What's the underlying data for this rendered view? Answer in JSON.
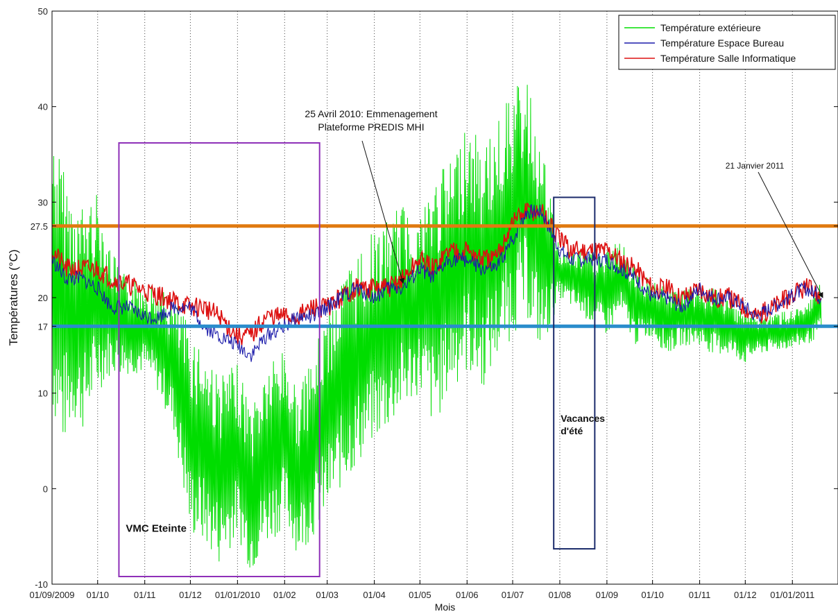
{
  "chart_data": {
    "type": "line",
    "title": "",
    "xlabel": "Mois",
    "ylabel": "Températures (°C)",
    "ylim": [
      -10,
      50
    ],
    "xlim": [
      "2009-09-01",
      "2011-01-31"
    ],
    "y_ticks": [
      -10,
      0,
      10,
      20,
      30,
      40,
      50
    ],
    "y_extra_ticks": [
      17,
      27.5
    ],
    "x_ticks": [
      {
        "date": "2009-09-01",
        "label": "01/09/2009"
      },
      {
        "date": "2009-10-01",
        "label": "01/10"
      },
      {
        "date": "2009-11-01",
        "label": "01/11"
      },
      {
        "date": "2009-12-01",
        "label": "01/12"
      },
      {
        "date": "2010-01-01",
        "label": "01/01/2010"
      },
      {
        "date": "2010-02-01",
        "label": "01/02"
      },
      {
        "date": "2010-03-01",
        "label": "01/03"
      },
      {
        "date": "2010-04-01",
        "label": "01/04"
      },
      {
        "date": "2010-05-01",
        "label": "01/05"
      },
      {
        "date": "2010-06-01",
        "label": "01/06"
      },
      {
        "date": "2010-07-01",
        "label": "01/07"
      },
      {
        "date": "2010-08-01",
        "label": "01/08"
      },
      {
        "date": "2010-09-01",
        "label": "01/09"
      },
      {
        "date": "2010-10-01",
        "label": "01/10"
      },
      {
        "date": "2010-11-01",
        "label": "01/11"
      },
      {
        "date": "2010-12-01",
        "label": "01/12"
      },
      {
        "date": "2011-01-01",
        "label": "01/01/2011"
      }
    ],
    "grid": "x-dotted",
    "legend_position": "top-right",
    "series": [
      {
        "name": "Température extérieure",
        "color": "#00dd00",
        "x": [
          "2009-09-01",
          "2009-09-08",
          "2009-09-15",
          "2009-09-22",
          "2009-10-01",
          "2009-10-10",
          "2009-10-20",
          "2009-11-01",
          "2009-11-10",
          "2009-11-20",
          "2009-12-01",
          "2009-12-10",
          "2009-12-20",
          "2010-01-01",
          "2010-01-10",
          "2010-01-20",
          "2010-02-01",
          "2010-02-10",
          "2010-02-20",
          "2010-03-01",
          "2010-03-10",
          "2010-03-20",
          "2010-04-01",
          "2010-04-10",
          "2010-04-20",
          "2010-05-01",
          "2010-05-10",
          "2010-05-20",
          "2010-06-01",
          "2010-06-10",
          "2010-06-20",
          "2010-07-01",
          "2010-07-10",
          "2010-07-20",
          "2010-08-01",
          "2010-09-01",
          "2010-09-10",
          "2010-09-20",
          "2010-10-01",
          "2010-10-10",
          "2010-10-20",
          "2010-11-01",
          "2010-11-10",
          "2010-11-20",
          "2010-12-01",
          "2010-12-08",
          "2011-01-10",
          "2011-01-20"
        ],
        "y": [
          27,
          18,
          22,
          16,
          19,
          20,
          17,
          18,
          16,
          14,
          6,
          3,
          -1,
          2,
          -4,
          1,
          3,
          -2,
          2,
          6,
          8,
          12,
          15,
          17,
          18,
          19,
          14,
          18,
          20,
          17,
          21,
          24,
          27,
          22,
          23,
          20,
          22,
          18,
          19,
          17,
          18,
          18,
          17,
          17,
          17,
          16,
          17,
          18
        ],
        "low": [
          8,
          4,
          7,
          6,
          10,
          12,
          12,
          12,
          10,
          6,
          -5,
          -6,
          -8,
          -5,
          -9,
          -6,
          -4,
          -7,
          -5,
          -3,
          0,
          2,
          5,
          6,
          8,
          10,
          6,
          10,
          12,
          10,
          13,
          16,
          18,
          14,
          20,
          16,
          18,
          15,
          16,
          14,
          15,
          15,
          14,
          14,
          13,
          14,
          15,
          16
        ],
        "high": [
          38,
          34,
          30,
          30,
          31,
          25,
          22,
          22,
          21,
          20,
          17,
          15,
          12,
          13,
          9,
          13,
          15,
          10,
          14,
          19,
          22,
          25,
          27,
          28,
          30,
          29,
          33,
          34,
          39,
          36,
          38,
          42,
          43,
          36,
          25,
          25,
          26,
          23,
          22,
          21,
          21,
          21,
          21,
          20,
          19,
          18,
          19,
          22
        ]
      },
      {
        "name": "Température Espace Bureau",
        "color": "#1a1aaa",
        "x": [
          "2009-09-01",
          "2009-09-10",
          "2009-09-20",
          "2009-10-01",
          "2009-10-10",
          "2009-10-20",
          "2009-11-01",
          "2009-11-10",
          "2009-11-20",
          "2009-12-01",
          "2009-12-10",
          "2009-12-20",
          "2010-01-01",
          "2010-01-10",
          "2010-01-20",
          "2010-02-01",
          "2010-02-10",
          "2010-02-20",
          "2010-03-01",
          "2010-03-10",
          "2010-03-20",
          "2010-04-01",
          "2010-04-10",
          "2010-04-20",
          "2010-05-01",
          "2010-05-10",
          "2010-05-20",
          "2010-06-01",
          "2010-06-10",
          "2010-06-20",
          "2010-07-01",
          "2010-07-10",
          "2010-07-20",
          "2010-08-01",
          "2010-08-08",
          "2010-09-01",
          "2010-09-10",
          "2010-09-20",
          "2010-10-01",
          "2010-10-10",
          "2010-10-20",
          "2010-11-01",
          "2010-11-10",
          "2010-11-20",
          "2010-12-01",
          "2010-12-08",
          "2011-01-10",
          "2011-01-20"
        ],
        "y": [
          24,
          22,
          22,
          21,
          19,
          19,
          18,
          18,
          19,
          19,
          17,
          16,
          15,
          14,
          16,
          17,
          18,
          18,
          19,
          20,
          21,
          20,
          21,
          21,
          23,
          22,
          24,
          24,
          23,
          23,
          26,
          29,
          29,
          25,
          24,
          24,
          23,
          22,
          20,
          20,
          19,
          21,
          20,
          20,
          19,
          18,
          21,
          20
        ]
      },
      {
        "name": "Température Salle Informatique",
        "color": "#dd1111",
        "x": [
          "2009-09-01",
          "2009-09-10",
          "2009-09-20",
          "2009-10-01",
          "2009-10-10",
          "2009-12-01",
          "2009-12-10",
          "2009-12-20",
          "2010-01-01",
          "2010-01-10",
          "2010-01-20",
          "2010-02-01",
          "2010-02-10",
          "2010-02-20",
          "2010-03-01",
          "2010-03-10",
          "2010-03-20",
          "2010-04-01",
          "2010-04-10",
          "2010-04-20",
          "2010-05-01",
          "2010-05-10",
          "2010-05-20",
          "2010-06-01",
          "2010-06-10",
          "2010-06-20",
          "2010-07-01",
          "2010-07-10",
          "2010-07-20",
          "2010-08-01",
          "2010-08-08",
          "2010-09-01",
          "2010-09-10",
          "2010-09-20",
          "2010-10-01",
          "2010-10-10",
          "2010-10-20",
          "2010-11-01",
          "2010-11-10",
          "2010-11-20",
          "2010-12-01",
          "2010-12-08",
          "2011-01-10",
          "2011-01-20"
        ],
        "y": [
          25,
          23,
          23,
          23,
          22,
          19,
          19,
          18,
          16,
          16,
          18,
          18,
          18,
          19,
          19,
          20,
          21,
          21,
          21,
          22,
          24,
          23,
          25,
          25,
          24,
          24,
          28,
          29,
          29,
          26,
          25,
          25,
          24,
          23,
          21,
          21,
          20,
          21,
          20,
          20,
          19,
          18,
          21,
          20
        ]
      }
    ],
    "reference_lines": [
      {
        "value": 27.5,
        "color": "#e07a10"
      },
      {
        "value": 17,
        "color": "#2a8ccc"
      }
    ],
    "annotations": [
      {
        "text": "VMC Eteinte",
        "color": "#8e2fb8",
        "box": {
          "x0": "2009-10-15",
          "x1": "2010-02-24",
          "y0": -9.2,
          "y1": 36.2
        }
      },
      {
        "text": "Vacances d'été",
        "lines": [
          "Vacances",
          "d'été"
        ],
        "color": "#1a2a6a",
        "box": {
          "x0": "2010-07-28",
          "x1": "2010-08-24",
          "y0": -6.3,
          "y1": 30.5
        }
      },
      {
        "lines": [
          "25 Avril 2010: Emmenagement",
          "Plateforme PREDIS MHI"
        ],
        "arrow_to": {
          "x": "2010-04-20",
          "y": 21.5
        }
      },
      {
        "lines": [
          "21 Janvier 2011"
        ],
        "arrow_to": {
          "x": "2011-01-21",
          "y": 20
        }
      }
    ]
  }
}
